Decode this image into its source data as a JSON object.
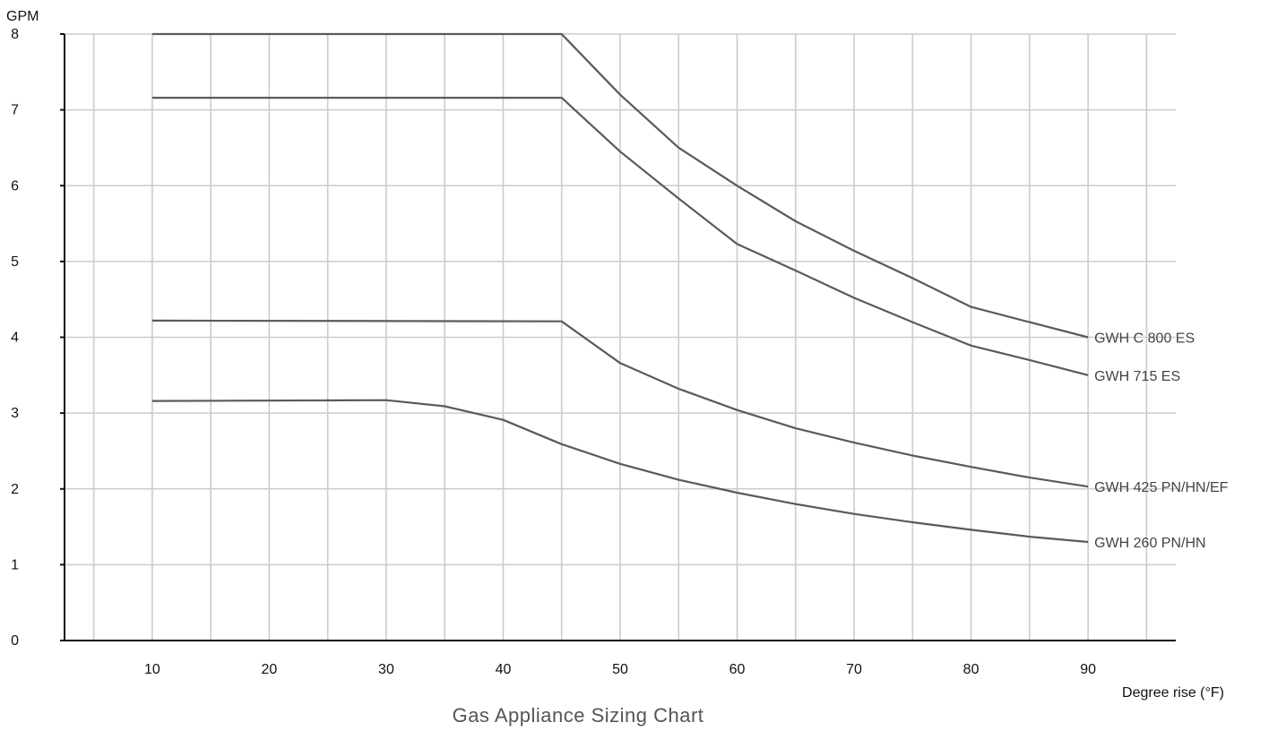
{
  "chart_data": {
    "type": "line",
    "title": "Gas Appliance Sizing Chart",
    "xlabel": "Degree rise (°F)",
    "ylabel": "GPM",
    "xlim": [
      2.5,
      97.5
    ],
    "ylim": [
      0,
      8
    ],
    "x_ticks": [
      10,
      20,
      30,
      40,
      50,
      60,
      70,
      80,
      90
    ],
    "y_ticks": [
      0,
      1,
      2,
      3,
      4,
      5,
      6,
      7,
      8
    ],
    "x_tick_labels": [
      "10",
      "20",
      "30",
      "40",
      "50",
      "60",
      "70",
      "80",
      "90"
    ],
    "y_tick_labels": [
      "0",
      "1",
      "2",
      "3",
      "4",
      "5",
      "6",
      "7",
      "8"
    ],
    "x_grid": [
      5,
      10,
      15,
      20,
      25,
      30,
      35,
      40,
      45,
      50,
      55,
      60,
      65,
      70,
      75,
      80,
      85,
      90,
      95
    ],
    "y_grid": [
      1,
      2,
      3,
      4,
      5,
      6,
      7,
      8
    ],
    "grid": true,
    "line_color": "#5a5a5a",
    "grid_color": "#cccccc",
    "series": [
      {
        "name": "GWH C 800 ES",
        "x": [
          10,
          45,
          50,
          55,
          60,
          65,
          70,
          75,
          80,
          85,
          90
        ],
        "y": [
          8.0,
          8.0,
          7.2,
          6.5,
          6.0,
          5.53,
          5.14,
          4.78,
          4.4,
          4.2,
          4.0
        ]
      },
      {
        "name": "GWH 715 ES",
        "x": [
          10,
          45,
          50,
          55,
          60,
          65,
          70,
          75,
          80,
          85,
          90
        ],
        "y": [
          7.16,
          7.16,
          6.45,
          5.83,
          5.23,
          4.88,
          4.52,
          4.2,
          3.89,
          3.7,
          3.5
        ]
      },
      {
        "name": "GWH 425 PN/HN/EF",
        "x": [
          10,
          45,
          50,
          55,
          60,
          65,
          70,
          75,
          80,
          85,
          90
        ],
        "y": [
          4.22,
          4.21,
          3.66,
          3.32,
          3.04,
          2.8,
          2.61,
          2.44,
          2.29,
          2.15,
          2.03
        ]
      },
      {
        "name": "GWH 260 PN/HN",
        "x": [
          10,
          30,
          35,
          40,
          45,
          50,
          55,
          60,
          65,
          70,
          75,
          80,
          85,
          90
        ],
        "y": [
          3.16,
          3.17,
          3.09,
          2.91,
          2.59,
          2.33,
          2.12,
          1.95,
          1.8,
          1.67,
          1.56,
          1.46,
          1.37,
          1.3
        ]
      }
    ]
  }
}
